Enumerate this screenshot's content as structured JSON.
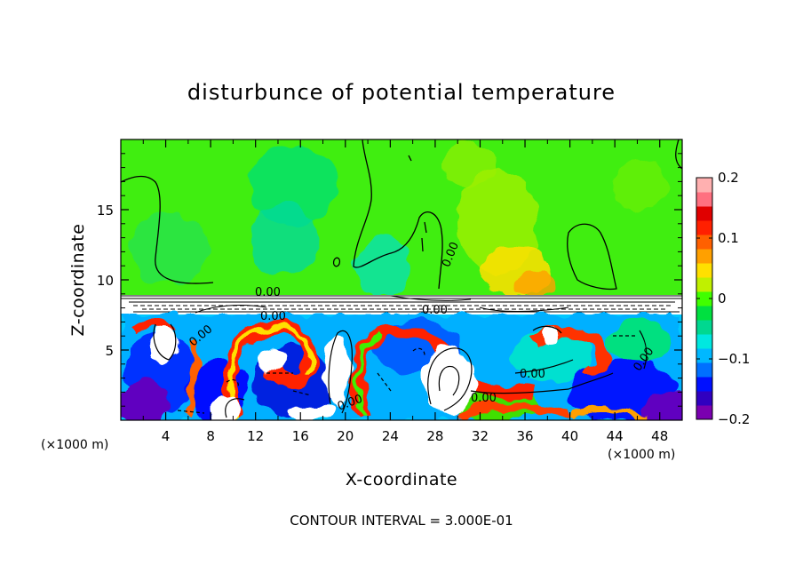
{
  "chart_data": {
    "type": "heatmap",
    "title": "disturbunce of potential temperature",
    "xlabel": "X-coordinate",
    "ylabel": "Z-coordinate",
    "x_unit": "(×1000 m)",
    "x_ticks": [
      "4",
      "8",
      "12",
      "16",
      "20",
      "24",
      "28",
      "32",
      "36",
      "40",
      "44",
      "48"
    ],
    "y_ticks": [
      "5",
      "10",
      "15"
    ],
    "xlim": [
      0,
      50
    ],
    "ylim": [
      0,
      20
    ],
    "colorbar": {
      "ticks": [
        "0.2",
        "0.1",
        "0",
        "−0.1",
        "−0.2"
      ],
      "range": [
        -0.2,
        0.2
      ]
    },
    "contour_labels": [
      "0.00",
      "0.00",
      "0.00",
      "0.00",
      "0.00",
      "0.00",
      "0.00",
      "0.00",
      "0.00"
    ],
    "footnote": "CONTOUR INTERVAL = 3.000E-01"
  },
  "colors": {
    "palette": [
      "#7a00b0",
      "#3000c0",
      "#0010ff",
      "#0070ff",
      "#00b8ff",
      "#00e8e0",
      "#00d890",
      "#00e040",
      "#40ff00",
      "#c0f000",
      "#ffe000",
      "#ffa000",
      "#ff6000",
      "#ff2000",
      "#e00000",
      "#ff7080",
      "#ffb0b0"
    ]
  }
}
